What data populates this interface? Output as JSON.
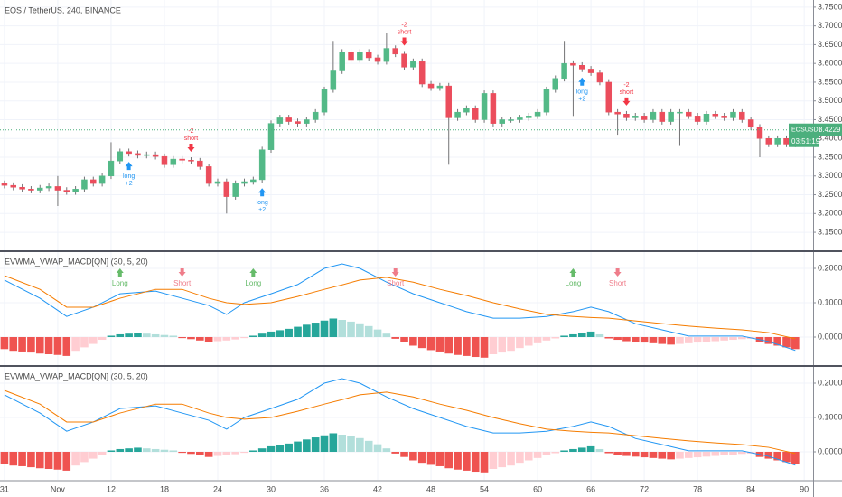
{
  "chart_data": [
    {
      "type": "candlestick",
      "title": "EOS / TetherUS, 240, BINANCE",
      "xlim": [
        -0.5,
        91
      ],
      "ylim": [
        3.102,
        3.769
      ],
      "grid": true,
      "up_color": "#53b987",
      "down_color": "#eb4d5c",
      "wick_color": "#737375",
      "yticks": [
        {
          "value": 3.75,
          "label": "3.7500"
        },
        {
          "value": 3.7,
          "label": "3.7000"
        },
        {
          "value": 3.65,
          "label": "3.6500"
        },
        {
          "value": 3.6,
          "label": "3.6000"
        },
        {
          "value": 3.55,
          "label": "3.5500"
        },
        {
          "value": 3.5,
          "label": "3.5000"
        },
        {
          "value": 3.45,
          "label": "3.4500"
        },
        {
          "value": 3.4,
          "label": "3.4000"
        },
        {
          "value": 3.35,
          "label": "3.3500"
        },
        {
          "value": 3.3,
          "label": "3.3000"
        },
        {
          "value": 3.25,
          "label": "3.2500"
        },
        {
          "value": 3.2,
          "label": "3.2000"
        },
        {
          "value": 3.15,
          "label": "3.1500"
        }
      ],
      "open": [
        3.28,
        3.275,
        3.27,
        3.265,
        3.262,
        3.268,
        3.272,
        3.262,
        3.258,
        3.265,
        3.29,
        3.28,
        3.3,
        3.34,
        3.365,
        3.36,
        3.355,
        3.357,
        3.352,
        3.33,
        3.345,
        3.342,
        3.34,
        3.325,
        3.28,
        3.285,
        3.245,
        3.28,
        3.285,
        3.29,
        3.37,
        3.44,
        3.455,
        3.445,
        3.44,
        3.45,
        3.47,
        3.53,
        3.58,
        3.63,
        3.61,
        3.63,
        3.615,
        3.605,
        3.64,
        3.625,
        3.59,
        3.605,
        3.545,
        3.535,
        3.54,
        3.455,
        3.47,
        3.48,
        3.45,
        3.52,
        3.44,
        3.45,
        3.45,
        3.455,
        3.46,
        3.47,
        3.53,
        3.56,
        3.6,
        3.595,
        3.585,
        3.575,
        3.55,
        3.47,
        3.465,
        3.455,
        3.46,
        3.45,
        3.47,
        3.445,
        3.47,
        3.47,
        3.46,
        3.445,
        3.465,
        3.46,
        3.455,
        3.47,
        3.45,
        3.43,
        3.4,
        3.385,
        3.4,
        3.385
      ],
      "high": [
        3.288,
        3.283,
        3.278,
        3.273,
        3.276,
        3.28,
        3.3,
        3.27,
        3.273,
        3.298,
        3.298,
        3.308,
        3.39,
        3.373,
        3.373,
        3.368,
        3.365,
        3.365,
        3.36,
        3.353,
        3.353,
        3.35,
        3.348,
        3.333,
        3.293,
        3.293,
        3.288,
        3.293,
        3.298,
        3.378,
        3.448,
        3.463,
        3.463,
        3.453,
        3.458,
        3.478,
        3.538,
        3.66,
        3.638,
        3.638,
        3.638,
        3.638,
        3.623,
        3.68,
        3.648,
        3.633,
        3.613,
        3.613,
        3.553,
        3.548,
        3.548,
        3.478,
        3.488,
        3.488,
        3.528,
        3.528,
        3.458,
        3.458,
        3.463,
        3.468,
        3.478,
        3.538,
        3.568,
        3.66,
        3.608,
        3.603,
        3.593,
        3.583,
        3.558,
        3.478,
        3.473,
        3.468,
        3.468,
        3.478,
        3.478,
        3.478,
        3.478,
        3.478,
        3.468,
        3.473,
        3.473,
        3.468,
        3.478,
        3.478,
        3.458,
        3.438,
        3.408,
        3.408,
        3.408,
        3.431
      ],
      "low": [
        3.267,
        3.262,
        3.257,
        3.254,
        3.254,
        3.26,
        3.22,
        3.25,
        3.25,
        3.257,
        3.272,
        3.272,
        3.292,
        3.332,
        3.352,
        3.347,
        3.347,
        3.344,
        3.322,
        3.322,
        3.334,
        3.332,
        3.317,
        3.272,
        3.272,
        3.2,
        3.237,
        3.272,
        3.277,
        3.282,
        3.362,
        3.432,
        3.437,
        3.432,
        3.432,
        3.442,
        3.462,
        3.522,
        3.572,
        3.602,
        3.602,
        3.607,
        3.597,
        3.597,
        3.617,
        3.582,
        3.582,
        3.537,
        3.527,
        3.527,
        3.33,
        3.447,
        3.462,
        3.442,
        3.442,
        3.432,
        3.432,
        3.442,
        3.442,
        3.447,
        3.452,
        3.462,
        3.522,
        3.552,
        3.46,
        3.577,
        3.567,
        3.542,
        3.462,
        3.41,
        3.447,
        3.447,
        3.442,
        3.442,
        3.437,
        3.437,
        3.38,
        3.452,
        3.437,
        3.437,
        3.452,
        3.447,
        3.447,
        3.442,
        3.422,
        3.35,
        3.377,
        3.377,
        3.377,
        3.377
      ],
      "close": [
        3.275,
        3.27,
        3.265,
        3.262,
        3.268,
        3.272,
        3.262,
        3.258,
        3.265,
        3.29,
        3.28,
        3.3,
        3.34,
        3.365,
        3.36,
        3.355,
        3.357,
        3.352,
        3.33,
        3.345,
        3.342,
        3.34,
        3.325,
        3.28,
        3.285,
        3.245,
        3.28,
        3.285,
        3.29,
        3.37,
        3.44,
        3.455,
        3.445,
        3.44,
        3.45,
        3.47,
        3.53,
        3.58,
        3.63,
        3.61,
        3.63,
        3.615,
        3.605,
        3.64,
        3.625,
        3.59,
        3.605,
        3.545,
        3.535,
        3.54,
        3.455,
        3.47,
        3.48,
        3.45,
        3.52,
        3.44,
        3.45,
        3.45,
        3.455,
        3.46,
        3.47,
        3.53,
        3.56,
        3.6,
        3.595,
        3.585,
        3.575,
        3.55,
        3.47,
        3.465,
        3.455,
        3.46,
        3.45,
        3.47,
        3.445,
        3.47,
        3.47,
        3.46,
        3.445,
        3.465,
        3.46,
        3.455,
        3.47,
        3.45,
        3.43,
        3.4,
        3.385,
        3.4,
        3.385,
        3.423
      ],
      "signals": [
        {
          "x": 14,
          "label": "long",
          "qty": "+2",
          "color": "#2196f3",
          "position": "below"
        },
        {
          "x": 21,
          "label": "short",
          "qty": "-2",
          "color": "#f23645",
          "position": "above"
        },
        {
          "x": 29,
          "label": "long",
          "qty": "+2",
          "color": "#2196f3",
          "position": "below"
        },
        {
          "x": 45,
          "label": "short",
          "qty": "-2",
          "color": "#f23645",
          "position": "above"
        },
        {
          "x": 65,
          "label": "long",
          "qty": "+2",
          "color": "#2196f3",
          "position": "below"
        },
        {
          "x": 70,
          "label": "short",
          "qty": "-2",
          "color": "#f23645",
          "position": "above"
        }
      ],
      "symbol": "EOSUSDT",
      "last": {
        "value": 3.4229,
        "label": "3.4229"
      },
      "countdown": "03:51:19",
      "tag_color": "#4caf7d"
    },
    {
      "type": "macd",
      "title": "EVWMA_VWAP_MACD[QN] (30, 5, 20)",
      "xlim": [
        -0.5,
        91
      ],
      "ylim": [
        -0.0816,
        0.2474
      ],
      "grid": true,
      "yticks": [
        {
          "value": 0.2,
          "label": "0.2000"
        },
        {
          "value": 0.1,
          "label": "0.1000"
        },
        {
          "value": 0,
          "label": "0.0000"
        }
      ],
      "hist_colors": {
        "rising_above": "#26a69a",
        "falling_above": "#b2dfdb",
        "falling_below": "#ef5350",
        "rising_below": "#ffcdd2"
      },
      "histogram": [
        -0.035,
        -0.04,
        -0.042,
        -0.045,
        -0.048,
        -0.05,
        -0.052,
        -0.055,
        -0.04,
        -0.03,
        -0.02,
        -0.008,
        0.004,
        0.008,
        0.01,
        0.012,
        0.01,
        0.008,
        0.006,
        0.004,
        -0.003,
        -0.006,
        -0.01,
        -0.015,
        -0.012,
        -0.01,
        -0.007,
        -0.003,
        0.004,
        0.01,
        0.016,
        0.02,
        0.024,
        0.03,
        0.036,
        0.042,
        0.048,
        0.054,
        0.05,
        0.045,
        0.04,
        0.032,
        0.022,
        0.01,
        -0.005,
        -0.015,
        -0.025,
        -0.032,
        -0.038,
        -0.042,
        -0.048,
        -0.052,
        -0.055,
        -0.058,
        -0.06,
        -0.05,
        -0.045,
        -0.04,
        -0.032,
        -0.025,
        -0.018,
        -0.01,
        -0.004,
        0.004,
        0.008,
        0.012,
        0.016,
        0.008,
        -0.004,
        -0.008,
        -0.012,
        -0.014,
        -0.016,
        -0.018,
        -0.02,
        -0.022,
        -0.02,
        -0.018,
        -0.016,
        -0.014,
        -0.012,
        -0.01,
        -0.008,
        -0.006,
        -0.005,
        -0.015,
        -0.02,
        -0.025,
        -0.03,
        -0.035
      ],
      "x": [
        0,
        4,
        7,
        10,
        13,
        17,
        20,
        23,
        25,
        27,
        30,
        33,
        36,
        38,
        40,
        43,
        46,
        49,
        52,
        55,
        58,
        61,
        64,
        66,
        68,
        71,
        74,
        77,
        80,
        83,
        86,
        89
      ],
      "series": [
        {
          "color": "#2196f3",
          "values": [
            0.166,
            0.113,
            0.06,
            0.087,
            0.126,
            0.134,
            0.113,
            0.092,
            0.066,
            0.1,
            0.126,
            0.153,
            0.2,
            0.213,
            0.2,
            0.16,
            0.126,
            0.1,
            0.074,
            0.055,
            0.055,
            0.06,
            0.074,
            0.087,
            0.074,
            0.039,
            0.021,
            0.003,
            0.003,
            0.003,
            -0.013,
            -0.039
          ]
        },
        {
          "color": "#f57c00",
          "values": [
            0.179,
            0.139,
            0.087,
            0.087,
            0.113,
            0.139,
            0.139,
            0.113,
            0.1,
            0.095,
            0.1,
            0.118,
            0.139,
            0.152,
            0.166,
            0.174,
            0.16,
            0.139,
            0.121,
            0.1,
            0.082,
            0.066,
            0.06,
            0.057,
            0.055,
            0.047,
            0.039,
            0.032,
            0.026,
            0.021,
            0.013,
            -0.005
          ]
        }
      ],
      "signals": [
        {
          "x": 13,
          "label": "Long",
          "color": "#66bb6a"
        },
        {
          "x": 20,
          "label": "Short",
          "color": "#ef7d8a"
        },
        {
          "x": 28,
          "label": "Long",
          "color": "#66bb6a"
        },
        {
          "x": 44,
          "label": "Short",
          "color": "#ef7d8a"
        },
        {
          "x": 64,
          "label": "Long",
          "color": "#66bb6a"
        },
        {
          "x": 69,
          "label": "Short",
          "color": "#ef7d8a"
        }
      ]
    },
    {
      "type": "macd",
      "title": "EVWMA_VWAP_MACD[QN] (30, 5, 20)",
      "xlim": [
        -0.5,
        91
      ],
      "ylim": [
        -0.0816,
        0.2474
      ],
      "grid": true,
      "yticks": [
        {
          "value": 0.2,
          "label": "0.2000"
        },
        {
          "value": 0.1,
          "label": "0.1000"
        },
        {
          "value": 0,
          "label": "0.0000"
        }
      ],
      "xticks": [
        {
          "value": 0,
          "label": "31"
        },
        {
          "value": 6,
          "label": "Nov"
        },
        12,
        18,
        24,
        30,
        36,
        42,
        48,
        54,
        60,
        66,
        72,
        78,
        84,
        90
      ],
      "hist_colors": {
        "rising_above": "#26a69a",
        "falling_above": "#b2dfdb",
        "falling_below": "#ef5350",
        "rising_below": "#ffcdd2"
      },
      "histogram": [
        -0.035,
        -0.04,
        -0.042,
        -0.045,
        -0.048,
        -0.05,
        -0.052,
        -0.055,
        -0.04,
        -0.03,
        -0.02,
        -0.008,
        0.004,
        0.008,
        0.01,
        0.012,
        0.01,
        0.008,
        0.006,
        0.004,
        -0.003,
        -0.006,
        -0.01,
        -0.015,
        -0.012,
        -0.01,
        -0.007,
        -0.003,
        0.004,
        0.01,
        0.016,
        0.02,
        0.024,
        0.03,
        0.036,
        0.042,
        0.048,
        0.054,
        0.05,
        0.045,
        0.04,
        0.032,
        0.022,
        0.01,
        -0.005,
        -0.015,
        -0.025,
        -0.032,
        -0.038,
        -0.042,
        -0.048,
        -0.052,
        -0.055,
        -0.058,
        -0.06,
        -0.05,
        -0.045,
        -0.04,
        -0.032,
        -0.025,
        -0.018,
        -0.01,
        -0.004,
        0.004,
        0.008,
        0.012,
        0.016,
        0.008,
        -0.004,
        -0.008,
        -0.012,
        -0.014,
        -0.016,
        -0.018,
        -0.02,
        -0.022,
        -0.02,
        -0.018,
        -0.016,
        -0.014,
        -0.012,
        -0.01,
        -0.008,
        -0.006,
        -0.005,
        -0.015,
        -0.02,
        -0.025,
        -0.03,
        -0.035
      ],
      "x": [
        0,
        4,
        7,
        10,
        13,
        17,
        20,
        23,
        25,
        27,
        30,
        33,
        36,
        38,
        40,
        43,
        46,
        49,
        52,
        55,
        58,
        61,
        64,
        66,
        68,
        71,
        74,
        77,
        80,
        83,
        86,
        89
      ],
      "series": [
        {
          "color": "#2196f3",
          "values": [
            0.166,
            0.113,
            0.06,
            0.087,
            0.126,
            0.134,
            0.113,
            0.092,
            0.066,
            0.1,
            0.126,
            0.153,
            0.2,
            0.213,
            0.2,
            0.16,
            0.126,
            0.1,
            0.074,
            0.055,
            0.055,
            0.06,
            0.074,
            0.087,
            0.074,
            0.039,
            0.021,
            0.003,
            0.003,
            0.003,
            -0.013,
            -0.039
          ]
        },
        {
          "color": "#f57c00",
          "values": [
            0.179,
            0.139,
            0.087,
            0.087,
            0.113,
            0.139,
            0.139,
            0.113,
            0.1,
            0.095,
            0.1,
            0.118,
            0.139,
            0.152,
            0.166,
            0.174,
            0.16,
            0.139,
            0.121,
            0.1,
            0.082,
            0.066,
            0.06,
            0.057,
            0.055,
            0.047,
            0.039,
            0.032,
            0.026,
            0.021,
            0.013,
            -0.005
          ]
        }
      ]
    }
  ]
}
